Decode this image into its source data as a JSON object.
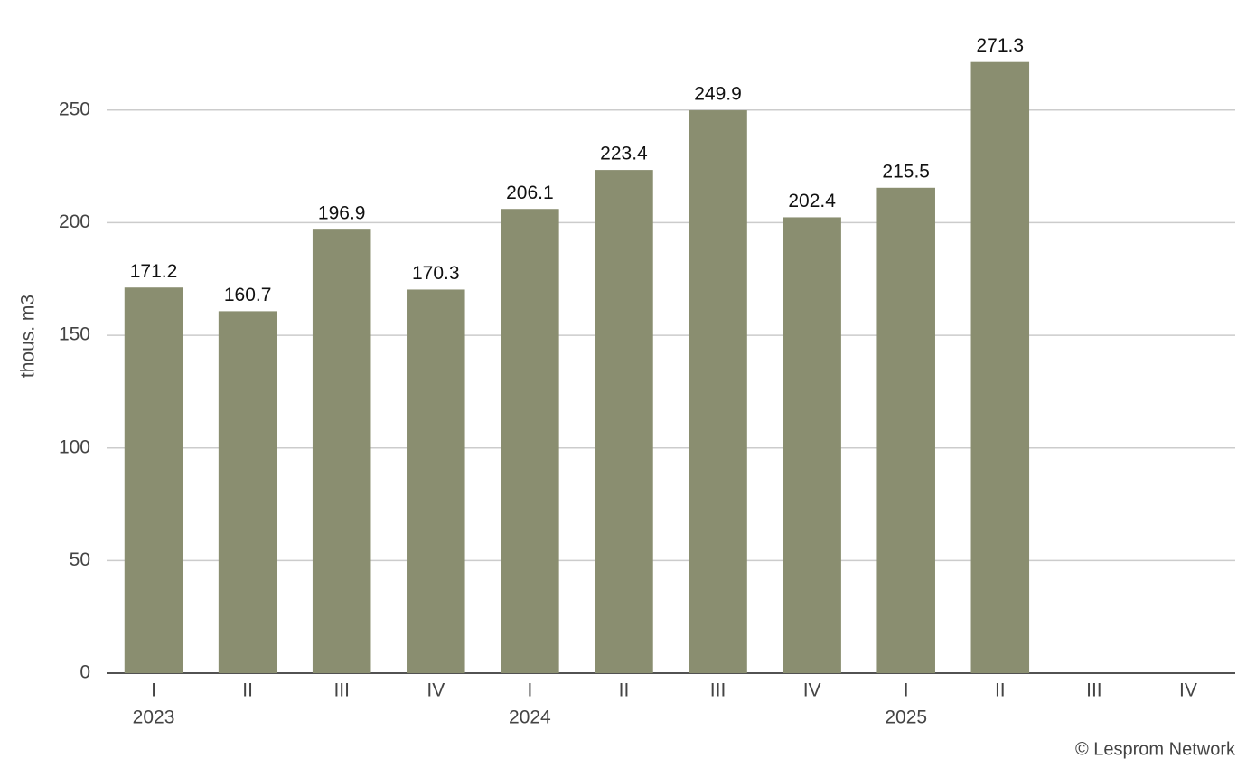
{
  "chart_data": {
    "type": "bar",
    "y_label": "thous. m3",
    "source": "© Lesprom Network",
    "categories": [
      "I",
      "II",
      "III",
      "IV",
      "I",
      "II",
      "III",
      "IV",
      "I",
      "II",
      "III",
      "IV"
    ],
    "years": [
      "2023",
      null,
      null,
      null,
      "2024",
      null,
      null,
      null,
      "2025",
      null,
      null,
      null
    ],
    "values": [
      171.2,
      160.7,
      196.9,
      170.3,
      206.1,
      223.4,
      249.9,
      202.4,
      215.5,
      271.3,
      null,
      null
    ],
    "color": "#8a8e70",
    "ylim": [
      0,
      280
    ],
    "yticks": [
      0,
      50,
      100,
      150,
      200,
      250
    ],
    "grid": true
  }
}
